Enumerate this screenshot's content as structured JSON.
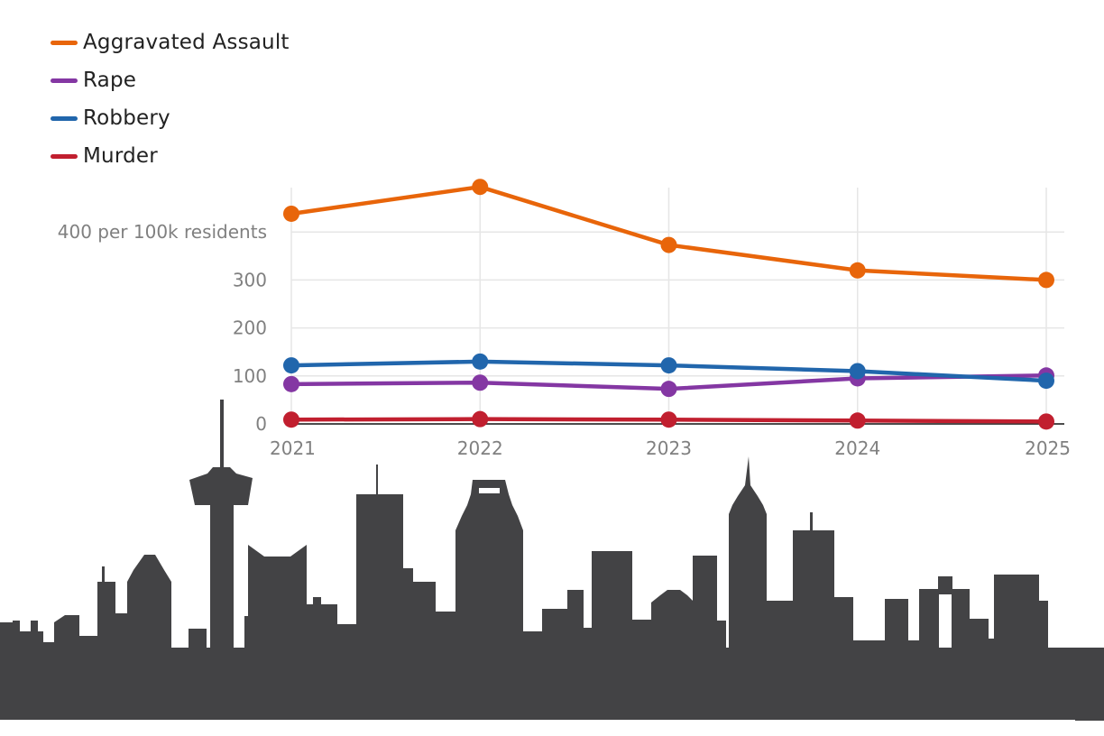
{
  "chart_data": {
    "type": "line",
    "title": "",
    "xlabel": "",
    "ylabel": "",
    "y_unit_label": "per 100k residents",
    "x": [
      "2021",
      "2022",
      "2023",
      "2024",
      "2025"
    ],
    "yticks": [
      0,
      100,
      200,
      300,
      400
    ],
    "ytick_labels": [
      "0",
      "100",
      "200",
      "300",
      "400 per 100k residents"
    ],
    "ylim": [
      0,
      500
    ],
    "grid": true,
    "legend_position": "top-left",
    "series": [
      {
        "name": "Aggravated Assault",
        "color": "#e8650a",
        "values": [
          438,
          494,
          373,
          320,
          300
        ]
      },
      {
        "name": "Rape",
        "color": "#8437a3",
        "values": [
          83,
          86,
          73,
          95,
          101
        ]
      },
      {
        "name": "Robbery",
        "color": "#2166ac",
        "values": [
          122,
          130,
          122,
          110,
          90
        ]
      },
      {
        "name": "Murder",
        "color": "#c11f2f",
        "values": [
          9,
          10,
          9,
          7,
          5
        ]
      }
    ]
  },
  "skyline_color": "#434345"
}
